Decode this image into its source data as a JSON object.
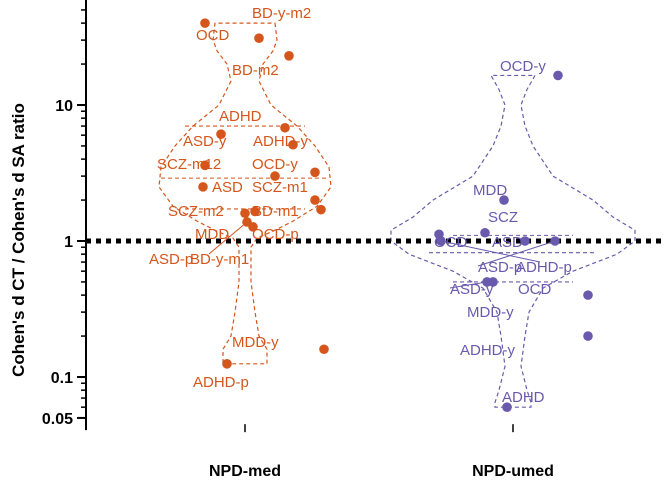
{
  "chart_data": {
    "type": "scatter",
    "ylabel": "Cohen's d CT / Cohen's d SA ratio",
    "y_scale": "log",
    "ylim": [
      0.045,
      70
    ],
    "y_ticks": [
      {
        "value": 0.05,
        "label": "0.05"
      },
      {
        "value": 0.1,
        "label": "0.1"
      },
      {
        "value": 1,
        "label": "1"
      },
      {
        "value": 10,
        "label": "10"
      }
    ],
    "reference_line": {
      "y": 1,
      "style": "dotted"
    },
    "categories": [
      "NPD-med",
      "NPD-umed"
    ],
    "series": [
      {
        "name": "NPD-med",
        "color": "#d4561c",
        "points": [
          {
            "label": "BD-y-m2",
            "y": 40
          },
          {
            "label": "OCD",
            "y": 31
          },
          {
            "label": "BD-m2",
            "y": 23
          },
          {
            "label": "ADHD",
            "y": 6.8
          },
          {
            "label": "ASD-y",
            "y": 6.1
          },
          {
            "label": "ADHD-y",
            "y": 5.1
          },
          {
            "label": "SCZ-m12",
            "y": 3.6
          },
          {
            "label": "OCD-y",
            "y": 3.2
          },
          {
            "label": "ASD",
            "y": 2.5
          },
          {
            "label": "SCZ-m1",
            "y": 3.0
          },
          {
            "label": "SCZ-m2",
            "y": 2.0
          },
          {
            "label": "BD-m1",
            "y": 1.7
          },
          {
            "label": "MDD",
            "y": 1.6
          },
          {
            "label": "OCD-p",
            "y": 1.65
          },
          {
            "label": "ASD-p",
            "y": 1.38
          },
          {
            "label": "BD-y-m1",
            "y": 1.27
          },
          {
            "label": "MDD-y",
            "y": 0.16
          },
          {
            "label": "ADHD-p",
            "y": 0.125
          }
        ]
      },
      {
        "name": "NPD-umed",
        "color": "#6a5aad",
        "points": [
          {
            "label": "OCD-y",
            "y": 16.5
          },
          {
            "label": "MDD",
            "y": 2.0
          },
          {
            "label": "SCZ",
            "y": 1.15
          },
          {
            "label": "OCD",
            "y": 1.12
          },
          {
            "label": "ASD",
            "y": 1.0
          },
          {
            "label": "ASD-p",
            "y": 1.0
          },
          {
            "label": "ADHD-p",
            "y": 1.0
          },
          {
            "label": "ASD-y",
            "y": 0.5
          },
          {
            "label": "OCD",
            "y": 0.5
          },
          {
            "label": "MDD-y",
            "y": 0.4
          },
          {
            "label": "ADHD-y",
            "y": 0.2
          },
          {
            "label": "ADHD",
            "y": 0.06
          }
        ]
      }
    ]
  }
}
